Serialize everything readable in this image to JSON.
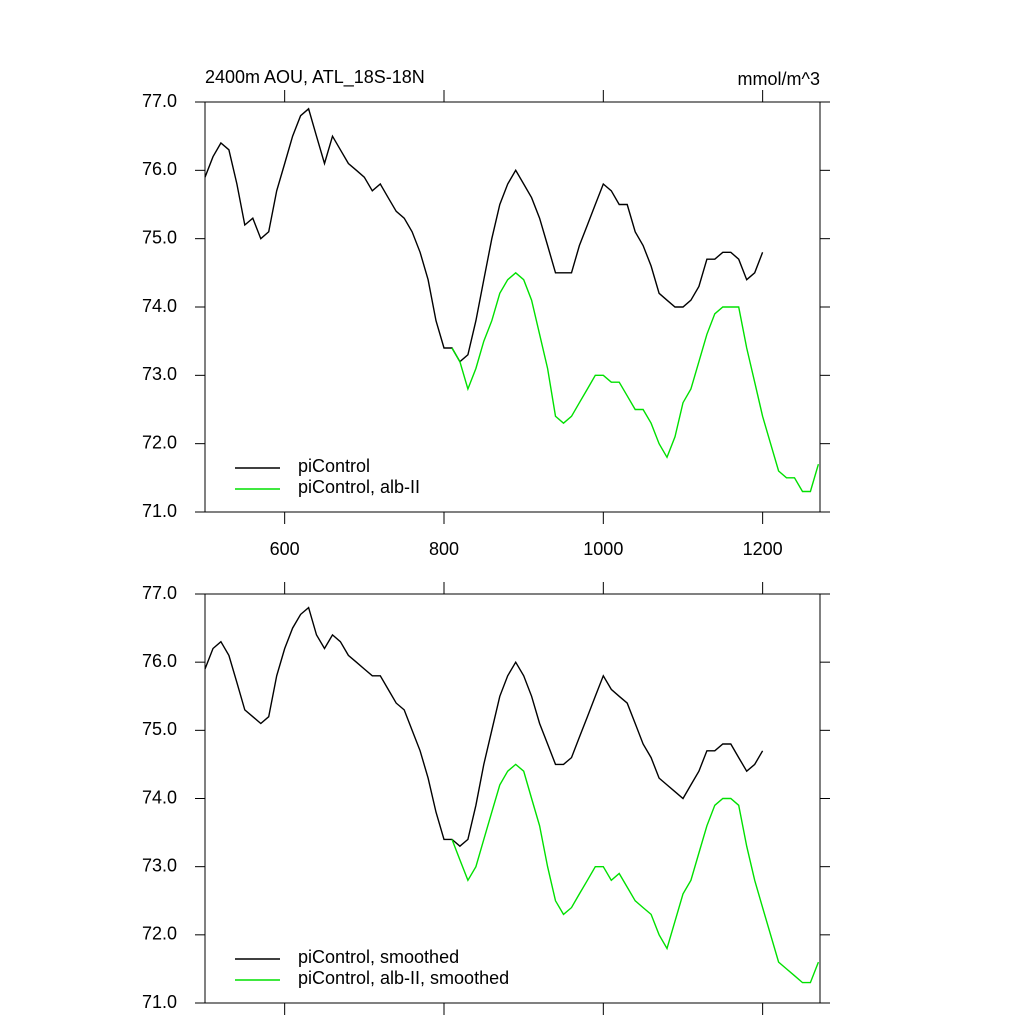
{
  "chart_data": [
    {
      "type": "line",
      "title": "2400m AOU, ATL_18S-18N",
      "units": "mmol/m^3",
      "xlim": [
        500,
        1272
      ],
      "xticks": [
        600,
        800,
        1000,
        1200
      ],
      "show_xtick_labels": true,
      "ylim": [
        71,
        77
      ],
      "yticks": [
        {
          "value": 71,
          "label": "71.0"
        },
        {
          "value": 72,
          "label": "72.0"
        },
        {
          "value": 73,
          "label": "73.0"
        },
        {
          "value": 74,
          "label": "74.0"
        },
        {
          "value": 75,
          "label": "75.0"
        },
        {
          "value": 76,
          "label": "76.0"
        },
        {
          "value": 77,
          "label": "77.0"
        }
      ],
      "legend": "lower left",
      "series": [
        {
          "name": "piControl",
          "color": "#000000",
          "x": [
            500,
            510,
            520,
            530,
            540,
            550,
            560,
            570,
            580,
            590,
            600,
            610,
            620,
            630,
            640,
            650,
            660,
            670,
            680,
            690,
            700,
            710,
            720,
            730,
            740,
            750,
            760,
            770,
            780,
            790,
            800,
            810,
            820,
            830,
            840,
            850,
            860,
            870,
            880,
            890,
            900,
            910,
            920,
            930,
            940,
            950,
            960,
            970,
            980,
            990,
            1000,
            1010,
            1020,
            1030,
            1040,
            1050,
            1060,
            1070,
            1080,
            1090,
            1100,
            1110,
            1120,
            1130,
            1140,
            1150,
            1160,
            1170,
            1180,
            1190,
            1200
          ],
          "values": [
            75.9,
            76.2,
            76.4,
            76.3,
            75.8,
            75.2,
            75.3,
            75.0,
            75.1,
            75.7,
            76.1,
            76.5,
            76.8,
            76.9,
            76.5,
            76.1,
            76.5,
            76.3,
            76.1,
            76.0,
            75.9,
            75.7,
            75.8,
            75.6,
            75.4,
            75.3,
            75.1,
            74.8,
            74.4,
            73.8,
            73.4,
            73.4,
            73.2,
            73.3,
            73.8,
            74.4,
            75.0,
            75.5,
            75.8,
            76.0,
            75.8,
            75.6,
            75.3,
            74.9,
            74.5,
            74.5,
            74.5,
            74.9,
            75.2,
            75.5,
            75.8,
            75.7,
            75.5,
            75.5,
            75.1,
            74.9,
            74.6,
            74.2,
            74.1,
            74.0,
            74.0,
            74.1,
            74.3,
            74.7,
            74.7,
            74.8,
            74.8,
            74.7,
            74.4,
            74.5,
            74.8
          ]
        },
        {
          "name": "piControl, alb-II",
          "color": "#00e000",
          "x": [
            810,
            820,
            830,
            840,
            850,
            860,
            870,
            880,
            890,
            900,
            910,
            920,
            930,
            940,
            950,
            960,
            970,
            980,
            990,
            1000,
            1010,
            1020,
            1030,
            1040,
            1050,
            1060,
            1070,
            1080,
            1090,
            1100,
            1110,
            1120,
            1130,
            1140,
            1150,
            1160,
            1170,
            1180,
            1190,
            1200,
            1210,
            1220,
            1230,
            1240,
            1250,
            1260,
            1270
          ],
          "values": [
            73.4,
            73.2,
            72.8,
            73.1,
            73.5,
            73.8,
            74.2,
            74.4,
            74.5,
            74.4,
            74.1,
            73.6,
            73.1,
            72.4,
            72.3,
            72.4,
            72.6,
            72.8,
            73.0,
            73.0,
            72.9,
            72.9,
            72.7,
            72.5,
            72.5,
            72.3,
            72.0,
            71.8,
            72.1,
            72.6,
            72.8,
            73.2,
            73.6,
            73.9,
            74.0,
            74.0,
            74.0,
            73.4,
            72.9,
            72.4,
            72.0,
            71.6,
            71.5,
            71.5,
            71.3,
            71.3,
            71.7
          ]
        }
      ]
    },
    {
      "type": "line",
      "xlim": [
        500,
        1272
      ],
      "xticks": [
        600,
        800,
        1000,
        1200
      ],
      "show_xtick_labels": false,
      "ylim": [
        71,
        77
      ],
      "yticks": [
        {
          "value": 71,
          "label": "71.0"
        },
        {
          "value": 72,
          "label": "72.0"
        },
        {
          "value": 73,
          "label": "73.0"
        },
        {
          "value": 74,
          "label": "74.0"
        },
        {
          "value": 75,
          "label": "75.0"
        },
        {
          "value": 76,
          "label": "76.0"
        },
        {
          "value": 77,
          "label": "77.0"
        }
      ],
      "legend": "lower left",
      "series": [
        {
          "name": "piControl, smoothed",
          "color": "#000000",
          "x": [
            500,
            510,
            520,
            530,
            540,
            550,
            560,
            570,
            580,
            590,
            600,
            610,
            620,
            630,
            640,
            650,
            660,
            670,
            680,
            690,
            700,
            710,
            720,
            730,
            740,
            750,
            760,
            770,
            780,
            790,
            800,
            810,
            820,
            830,
            840,
            850,
            860,
            870,
            880,
            890,
            900,
            910,
            920,
            930,
            940,
            950,
            960,
            970,
            980,
            990,
            1000,
            1010,
            1020,
            1030,
            1040,
            1050,
            1060,
            1070,
            1080,
            1090,
            1100,
            1110,
            1120,
            1130,
            1140,
            1150,
            1160,
            1170,
            1180,
            1190,
            1200
          ],
          "values": [
            75.9,
            76.2,
            76.3,
            76.1,
            75.7,
            75.3,
            75.2,
            75.1,
            75.2,
            75.8,
            76.2,
            76.5,
            76.7,
            76.8,
            76.4,
            76.2,
            76.4,
            76.3,
            76.1,
            76.0,
            75.9,
            75.8,
            75.8,
            75.6,
            75.4,
            75.3,
            75.0,
            74.7,
            74.3,
            73.8,
            73.4,
            73.4,
            73.3,
            73.4,
            73.9,
            74.5,
            75.0,
            75.5,
            75.8,
            76.0,
            75.8,
            75.5,
            75.1,
            74.8,
            74.5,
            74.5,
            74.6,
            74.9,
            75.2,
            75.5,
            75.8,
            75.6,
            75.5,
            75.4,
            75.1,
            74.8,
            74.6,
            74.3,
            74.2,
            74.1,
            74.0,
            74.2,
            74.4,
            74.7,
            74.7,
            74.8,
            74.8,
            74.6,
            74.4,
            74.5,
            74.7
          ]
        },
        {
          "name": "piControl, alb-II, smoothed",
          "color": "#00e000",
          "x": [
            810,
            820,
            830,
            840,
            850,
            860,
            870,
            880,
            890,
            900,
            910,
            920,
            930,
            940,
            950,
            960,
            970,
            980,
            990,
            1000,
            1010,
            1020,
            1030,
            1040,
            1050,
            1060,
            1070,
            1080,
            1090,
            1100,
            1110,
            1120,
            1130,
            1140,
            1150,
            1160,
            1170,
            1180,
            1190,
            1200,
            1210,
            1220,
            1230,
            1240,
            1250,
            1260,
            1270
          ],
          "values": [
            73.4,
            73.1,
            72.8,
            73.0,
            73.4,
            73.8,
            74.2,
            74.4,
            74.5,
            74.4,
            74.0,
            73.6,
            73.0,
            72.5,
            72.3,
            72.4,
            72.6,
            72.8,
            73.0,
            73.0,
            72.8,
            72.9,
            72.7,
            72.5,
            72.4,
            72.3,
            72.0,
            71.8,
            72.2,
            72.6,
            72.8,
            73.2,
            73.6,
            73.9,
            74.0,
            74.0,
            73.9,
            73.3,
            72.8,
            72.4,
            72.0,
            71.6,
            71.5,
            71.4,
            71.3,
            71.3,
            71.6
          ]
        }
      ]
    }
  ]
}
